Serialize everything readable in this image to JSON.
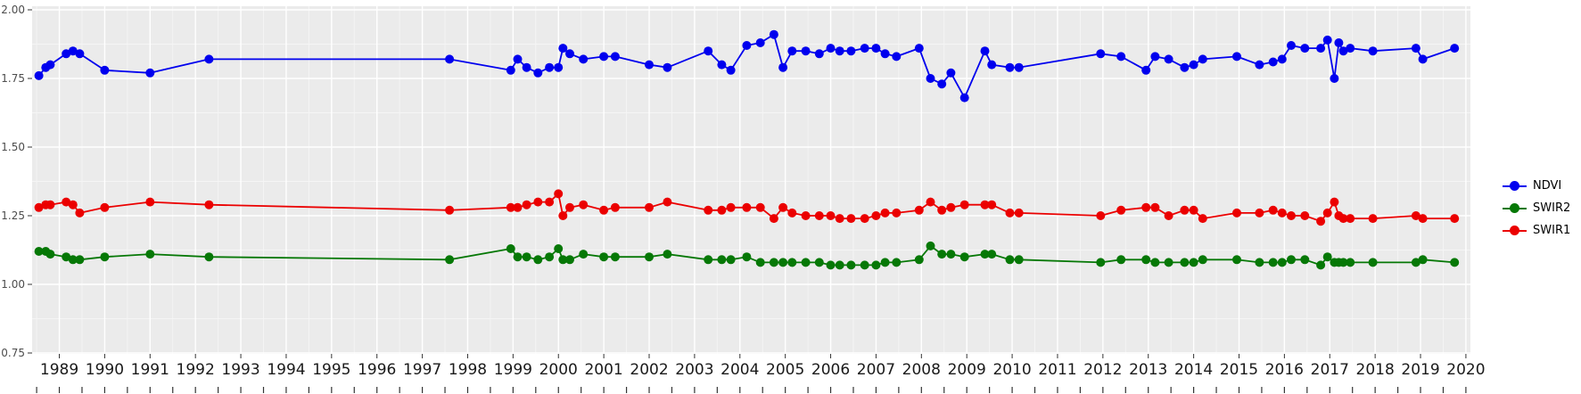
{
  "figure": {
    "background_color": "#ffffff",
    "panel_color": "#EBEBEB",
    "major_grid_color": "#FFFFFF",
    "minor_grid_color": "#F5F5F5",
    "tick_color": "#333333",
    "x_label_color": "#1a1a1a",
    "y_label_color": "#4d4d4d"
  },
  "legend": {
    "items": [
      {
        "label": "NDVI",
        "color": "#0000EE"
      },
      {
        "label": "SWIR2",
        "color": "#067806"
      },
      {
        "label": "SWIR1",
        "color": "#EB0000"
      }
    ]
  },
  "chart_data": {
    "type": "line",
    "title": "",
    "xlabel": "",
    "ylabel": "",
    "grid": true,
    "legend_position": "right",
    "xlim": [
      1988.4,
      2020.1
    ],
    "ylim": [
      0.75,
      2.0
    ],
    "x_ticks": [
      1989,
      1990,
      1991,
      1992,
      1993,
      1994,
      1995,
      1996,
      1997,
      1998,
      1999,
      2000,
      2001,
      2002,
      2003,
      2004,
      2005,
      2006,
      2007,
      2008,
      2009,
      2010,
      2011,
      2012,
      2013,
      2014,
      2015,
      2016,
      2017,
      2018,
      2019,
      2020
    ],
    "y_ticks": [
      0.75,
      1.0,
      1.25,
      1.5,
      1.75,
      2.0
    ],
    "y_tick_labels": [
      "0.75",
      "1.00",
      "1.25",
      "1.50",
      "1.75",
      "2.00"
    ],
    "x": [
      1988.55,
      1988.7,
      1988.8,
      1989.15,
      1989.3,
      1989.45,
      1990.0,
      1991.0,
      1992.3,
      1997.6,
      1998.95,
      1999.1,
      1999.3,
      1999.55,
      1999.8,
      2000.0,
      2000.1,
      2000.25,
      2000.55,
      2001.0,
      2001.25,
      2002.0,
      2002.4,
      2003.3,
      2003.6,
      2003.8,
      2004.15,
      2004.45,
      2004.75,
      2004.95,
      2005.15,
      2005.45,
      2005.75,
      2006.0,
      2006.2,
      2006.45,
      2006.75,
      2007.0,
      2007.2,
      2007.45,
      2007.95,
      2008.2,
      2008.45,
      2008.65,
      2008.95,
      2009.4,
      2009.55,
      2009.95,
      2010.15,
      2011.95,
      2012.4,
      2012.95,
      2013.15,
      2013.45,
      2013.8,
      2014.0,
      2014.2,
      2014.95,
      2015.45,
      2015.75,
      2015.95,
      2016.15,
      2016.45,
      2016.8,
      2016.95,
      2017.1,
      2017.2,
      2017.3,
      2017.45,
      2017.95,
      2018.9,
      2019.05,
      2019.75
    ],
    "series": [
      {
        "name": "NDVI",
        "color": "#0000EE",
        "values": [
          1.76,
          1.79,
          1.8,
          1.84,
          1.85,
          1.84,
          1.78,
          1.77,
          1.82,
          1.82,
          1.78,
          1.82,
          1.79,
          1.77,
          1.79,
          1.79,
          1.86,
          1.84,
          1.82,
          1.83,
          1.83,
          1.8,
          1.79,
          1.85,
          1.8,
          1.78,
          1.87,
          1.88,
          1.91,
          1.79,
          1.85,
          1.85,
          1.84,
          1.86,
          1.85,
          1.85,
          1.86,
          1.86,
          1.84,
          1.83,
          1.86,
          1.75,
          1.73,
          1.77,
          1.68,
          1.85,
          1.8,
          1.79,
          1.79,
          1.84,
          1.83,
          1.78,
          1.83,
          1.82,
          1.79,
          1.8,
          1.82,
          1.83,
          1.8,
          1.81,
          1.82,
          1.87,
          1.86,
          1.86,
          1.89,
          1.75,
          1.88,
          1.85,
          1.86,
          1.85,
          1.86,
          1.82,
          1.86
        ]
      },
      {
        "name": "SWIR2",
        "color": "#067806",
        "values": [
          1.12,
          1.12,
          1.11,
          1.1,
          1.09,
          1.09,
          1.1,
          1.11,
          1.1,
          1.09,
          1.13,
          1.1,
          1.1,
          1.09,
          1.1,
          1.13,
          1.09,
          1.09,
          1.11,
          1.1,
          1.1,
          1.1,
          1.11,
          1.09,
          1.09,
          1.09,
          1.1,
          1.08,
          1.08,
          1.08,
          1.08,
          1.08,
          1.08,
          1.07,
          1.07,
          1.07,
          1.07,
          1.07,
          1.08,
          1.08,
          1.09,
          1.14,
          1.11,
          1.11,
          1.1,
          1.11,
          1.11,
          1.09,
          1.09,
          1.08,
          1.09,
          1.09,
          1.08,
          1.08,
          1.08,
          1.08,
          1.09,
          1.09,
          1.08,
          1.08,
          1.08,
          1.09,
          1.09,
          1.07,
          1.1,
          1.08,
          1.08,
          1.08,
          1.08,
          1.08,
          1.08,
          1.09,
          1.08
        ]
      },
      {
        "name": "SWIR1",
        "color": "#EB0000",
        "values": [
          1.28,
          1.29,
          1.29,
          1.3,
          1.29,
          1.26,
          1.28,
          1.3,
          1.29,
          1.27,
          1.28,
          1.28,
          1.29,
          1.3,
          1.3,
          1.33,
          1.25,
          1.28,
          1.29,
          1.27,
          1.28,
          1.28,
          1.3,
          1.27,
          1.27,
          1.28,
          1.28,
          1.28,
          1.24,
          1.28,
          1.26,
          1.25,
          1.25,
          1.25,
          1.24,
          1.24,
          1.24,
          1.25,
          1.26,
          1.26,
          1.27,
          1.3,
          1.27,
          1.28,
          1.29,
          1.29,
          1.29,
          1.26,
          1.26,
          1.25,
          1.27,
          1.28,
          1.28,
          1.25,
          1.27,
          1.27,
          1.24,
          1.26,
          1.26,
          1.27,
          1.26,
          1.25,
          1.25,
          1.23,
          1.26,
          1.3,
          1.25,
          1.24,
          1.24,
          1.24,
          1.25,
          1.24,
          1.24
        ]
      }
    ]
  }
}
